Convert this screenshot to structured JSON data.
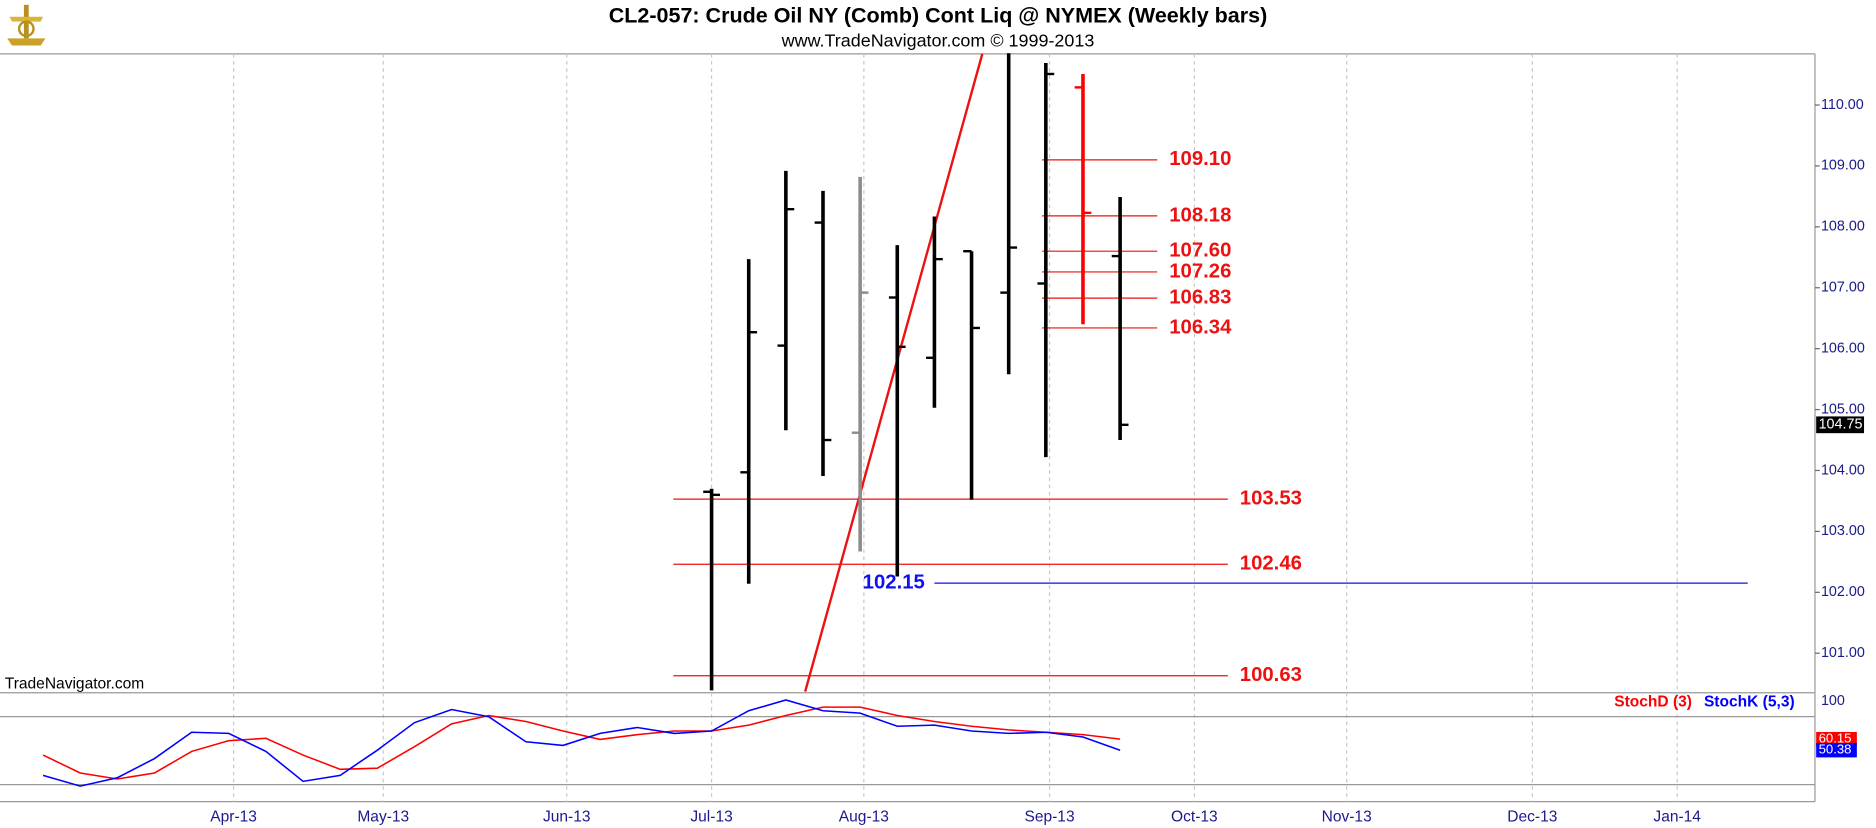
{
  "chart_data": [
    {
      "type": "ohlc",
      "title": "CL2-057:  Crude Oil NY (Comb) Cont Liq @ NYMEX  (Weekly bars)",
      "subtitle": "www.TradeNavigator.com © 1999-2013",
      "watermark": "TradeNavigator.com",
      "x": [
        19,
        20,
        21,
        22,
        23,
        24,
        25,
        26,
        27,
        28,
        29,
        30
      ],
      "open": [
        103.65,
        103.97,
        106.05,
        108.07,
        104.62,
        106.84,
        105.85,
        107.6,
        106.92,
        107.07,
        110.29,
        107.52
      ],
      "high": [
        103.7,
        107.47,
        108.92,
        108.59,
        108.82,
        107.7,
        108.17,
        107.6,
        110.85,
        110.69,
        110.51,
        108.49
      ],
      "low": [
        100.39,
        102.14,
        104.66,
        103.91,
        102.67,
        102.26,
        105.03,
        103.52,
        105.58,
        104.22,
        106.4,
        104.5
      ],
      "close": [
        103.6,
        106.27,
        108.29,
        104.5,
        106.92,
        106.03,
        107.47,
        106.34,
        107.66,
        110.51,
        108.23,
        104.75
      ],
      "colors": [
        "#000000",
        "#000000",
        "#000000",
        "#000000",
        "#8c8c8c",
        "#000000",
        "#000000",
        "#000000",
        "#000000",
        "#000000",
        "#ff0000",
        "#000000"
      ],
      "xlim": [
        -0.16,
        48.71
      ],
      "ylim": [
        100.37,
        110.84
      ],
      "yticks": [
        {
          "value": 101,
          "label": "101.00"
        },
        {
          "value": 102,
          "label": "102.00"
        },
        {
          "value": 103,
          "label": "103.00"
        },
        {
          "value": 104,
          "label": "104.00"
        },
        {
          "value": 105,
          "label": "105.00"
        },
        {
          "value": 106,
          "label": "106.00"
        },
        {
          "value": 107,
          "label": "107.00"
        },
        {
          "value": 108,
          "label": "108.00"
        },
        {
          "value": 109,
          "label": "109.00"
        },
        {
          "value": 110,
          "label": "110.00"
        }
      ],
      "levels": [
        {
          "value": 109.1,
          "label": "109.10",
          "color": "#ee1111",
          "x": [
            27.9,
            31.0
          ],
          "label_side": "right"
        },
        {
          "value": 108.18,
          "label": "108.18",
          "color": "#ee1111",
          "x": [
            27.9,
            31.0
          ],
          "label_side": "right"
        },
        {
          "value": 107.6,
          "label": "107.60",
          "color": "#ee1111",
          "x": [
            27.9,
            31.0
          ],
          "label_side": "right"
        },
        {
          "value": 107.26,
          "label": "107.26",
          "color": "#ee1111",
          "x": [
            27.9,
            31.0
          ],
          "label_side": "right"
        },
        {
          "value": 106.83,
          "label": "106.83",
          "color": "#ee1111",
          "x": [
            27.9,
            31.0
          ],
          "label_side": "right"
        },
        {
          "value": 106.34,
          "label": "106.34",
          "color": "#ee1111",
          "x": [
            27.9,
            31.0
          ],
          "label_side": "right"
        },
        {
          "value": 103.53,
          "label": "103.53",
          "color": "#ee1111",
          "x": [
            17.97,
            32.9
          ],
          "label_side": "right"
        },
        {
          "value": 102.46,
          "label": "102.46",
          "color": "#ee1111",
          "x": [
            17.97,
            32.9
          ],
          "label_side": "right"
        },
        {
          "value": 100.63,
          "label": "100.63",
          "color": "#ee1111",
          "x": [
            17.97,
            32.9
          ],
          "label_side": "right"
        },
        {
          "value": 102.15,
          "label": "102.15",
          "color": "#1111ee",
          "x": [
            25.0,
            46.9
          ],
          "label_side": "left"
        }
      ],
      "trendline": {
        "x": [
          21.52,
          26.29
        ],
        "y": [
          100.37,
          110.84
        ],
        "color": "#ee1111"
      }
    },
    {
      "type": "line",
      "x": [
        1,
        2,
        3,
        4,
        5,
        6,
        7,
        8,
        9,
        10,
        11,
        12,
        13,
        14,
        15,
        16,
        17,
        18,
        19,
        20,
        21,
        22,
        23,
        24,
        25,
        26,
        27,
        28,
        29,
        30
      ],
      "series": [
        {
          "name": "StochD (3)",
          "color": "#ff0000",
          "values": [
            46.1,
            30.3,
            25.0,
            30.3,
            49.3,
            58.8,
            60.9,
            46.1,
            33.5,
            34.5,
            53.5,
            73.6,
            81.0,
            75.7,
            67.3,
            59.9,
            64.1,
            67.3,
            67.3,
            72.5,
            81.0,
            88.4,
            88.4,
            81.0,
            75.7,
            71.5,
            68.3,
            66.2,
            64.1,
            60.15
          ]
        },
        {
          "name": "StochK (5,3)",
          "color": "#0000ff",
          "values": [
            28.2,
            18.7,
            26.1,
            43.0,
            66.2,
            65.2,
            49.3,
            22.9,
            28.2,
            50.4,
            74.7,
            86.3,
            79.9,
            57.8,
            54.6,
            65.2,
            70.4,
            65.2,
            67.3,
            85.2,
            94.7,
            85.2,
            83.1,
            71.5,
            72.5,
            67.3,
            65.2,
            66.2,
            62.0,
            50.38
          ]
        }
      ],
      "xlim": [
        -0.16,
        48.71
      ],
      "ylim": [
        5,
        100
      ],
      "yticks": [
        100
      ],
      "hlines": [
        80,
        20
      ],
      "xticks": [
        {
          "value": 6.13,
          "label": "Apr-13"
        },
        {
          "value": 10.16,
          "label": "May-13"
        },
        {
          "value": 15.1,
          "label": "Jun-13"
        },
        {
          "value": 19.0,
          "label": "Jul-13"
        },
        {
          "value": 23.1,
          "label": "Aug-13"
        },
        {
          "value": 28.1,
          "label": "Sep-13"
        },
        {
          "value": 32.0,
          "label": "Oct-13"
        },
        {
          "value": 36.1,
          "label": "Nov-13"
        },
        {
          "value": 41.1,
          "label": "Dec-13"
        },
        {
          "value": 45.0,
          "label": "Jan-14"
        }
      ]
    }
  ]
}
